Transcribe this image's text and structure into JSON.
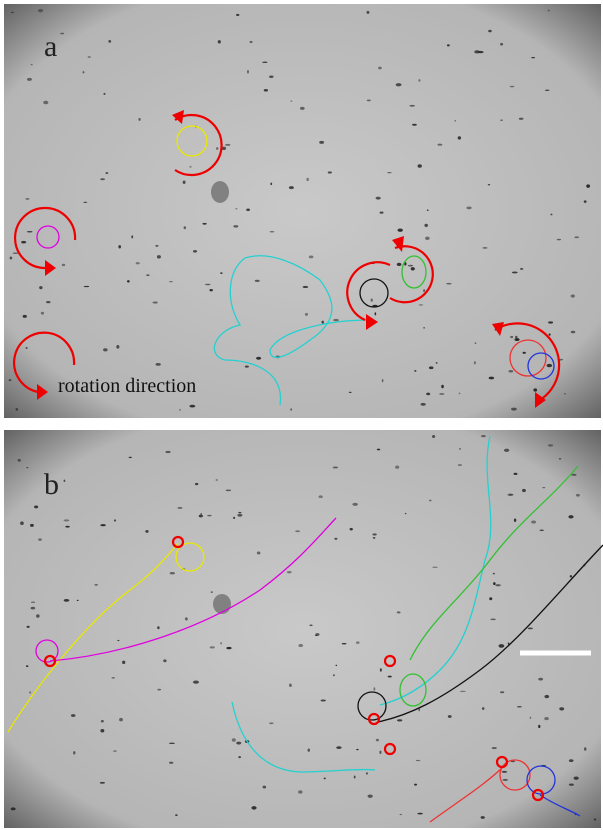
{
  "panels": [
    {
      "label": "a",
      "legend": "rotation direction"
    },
    {
      "label": "b"
    }
  ]
}
